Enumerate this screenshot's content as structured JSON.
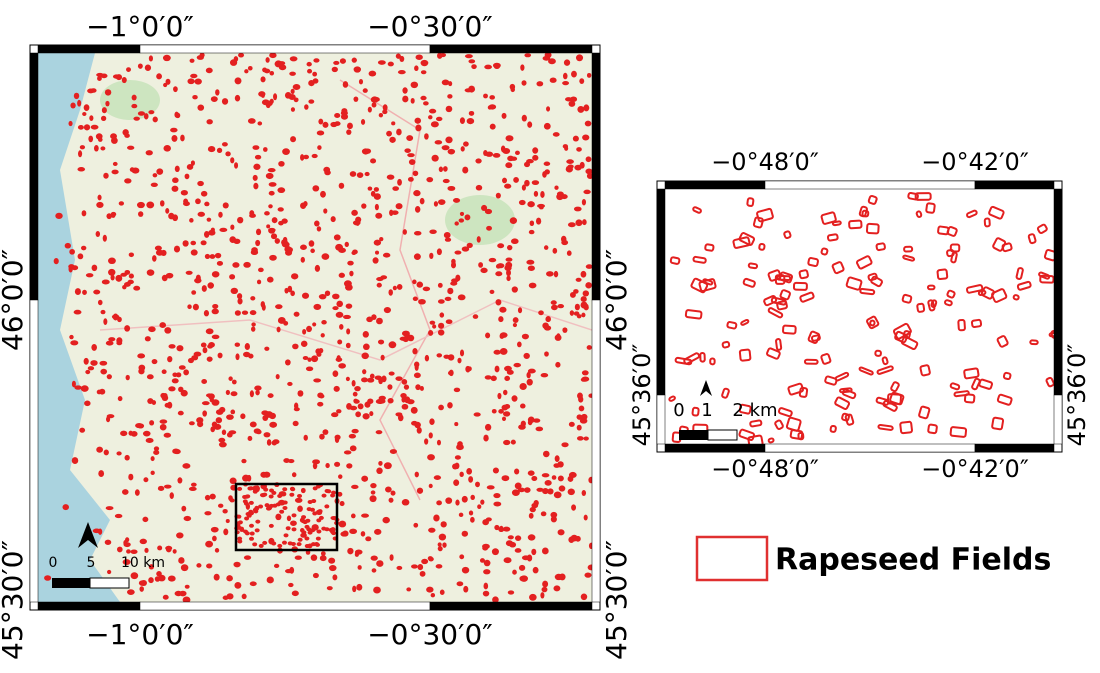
{
  "main_map": {
    "top_labels": [
      "−1°0′0″",
      "−0°30′0″"
    ],
    "bottom_labels": [
      "−1°0′0″",
      "−0°30′0″"
    ],
    "left_labels": [
      "46°0′0″",
      "45°30′0″"
    ],
    "right_labels": [
      "46°0′0″",
      "45°30′0″"
    ],
    "scale_labels": [
      "0",
      "5",
      "10 km"
    ]
  },
  "inset_map": {
    "top_labels": [
      "−0°48′0″",
      "−0°42′0″"
    ],
    "bottom_labels": [
      "−0°48′0″",
      "−0°42′0″"
    ],
    "left_labels": [
      "45°36′0″"
    ],
    "right_labels": [
      "45°36′0″"
    ],
    "scale_labels": [
      "0",
      "1",
      "2 km"
    ]
  },
  "legend": {
    "label": "Rapeseed Fields"
  }
}
